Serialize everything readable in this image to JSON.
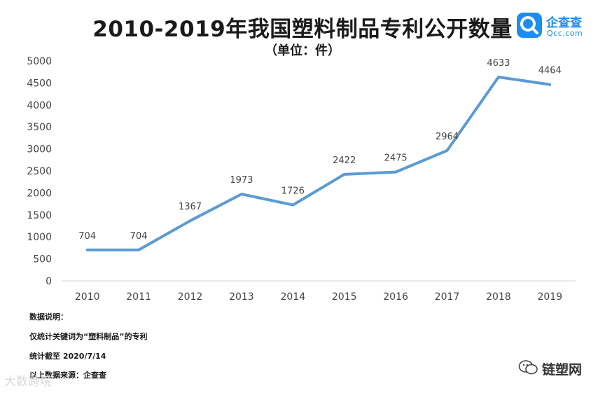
{
  "title": "2010-2019年我国塑料制品专利公开数量",
  "subtitle": "（单位：件）",
  "logo": {
    "name": "企查查",
    "domain": "Qcc.com",
    "color": "#1d8cf0"
  },
  "notes": [
    "数据说明：",
    "仅统计关键词为“塑料制品”的专利",
    "统计截至 2020/7/14",
    "以上数据来源：企查查"
  ],
  "watermarks": {
    "left": "大数跨境",
    "right": "链塑网"
  },
  "chart_data": {
    "type": "line",
    "title": "2010-2019年我国塑料制品专利公开数量",
    "xlabel": "",
    "ylabel": "",
    "categories": [
      "2010",
      "2011",
      "2012",
      "2013",
      "2014",
      "2015",
      "2016",
      "2017",
      "2018",
      "2019"
    ],
    "values": [
      704,
      704,
      1367,
      1973,
      1726,
      2422,
      2475,
      2964,
      4633,
      4464
    ],
    "ylim": [
      0,
      5000
    ],
    "yticks": [
      0,
      500,
      1000,
      1500,
      2000,
      2500,
      3000,
      3500,
      4000,
      4500,
      5000
    ],
    "grid": false,
    "line_color": "#5b9bd5"
  }
}
